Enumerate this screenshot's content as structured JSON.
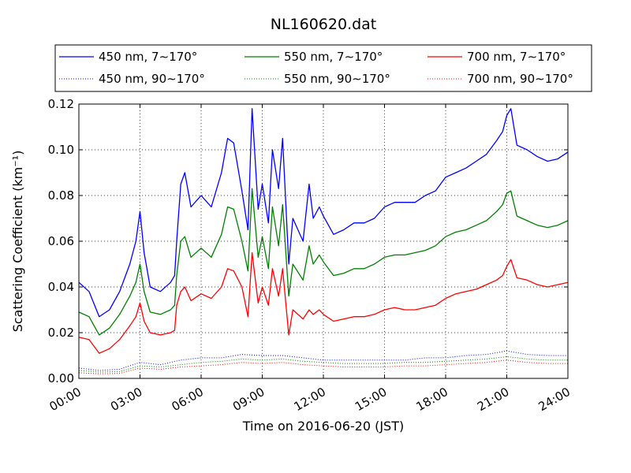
{
  "chart_data": {
    "type": "line",
    "title": "NL160620.dat",
    "xlabel": "Time on 2016-06-20 (JST)",
    "ylabel": "Scattering Coefficient (km⁻¹)",
    "x_unit": "hours",
    "xlim": [
      0,
      24
    ],
    "ylim": [
      0,
      0.12
    ],
    "xticks": [
      {
        "value": 0,
        "label": "00:00"
      },
      {
        "value": 3,
        "label": "03:00"
      },
      {
        "value": 6,
        "label": "06:00"
      },
      {
        "value": 9,
        "label": "09:00"
      },
      {
        "value": 12,
        "label": "12:00"
      },
      {
        "value": 15,
        "label": "15:00"
      },
      {
        "value": 18,
        "label": "18:00"
      },
      {
        "value": 21,
        "label": "21:00"
      },
      {
        "value": 24,
        "label": "24:00"
      }
    ],
    "yticks": [
      {
        "value": 0.0,
        "label": "0.00"
      },
      {
        "value": 0.02,
        "label": "0.02"
      },
      {
        "value": 0.04,
        "label": "0.04"
      },
      {
        "value": 0.06,
        "label": "0.06"
      },
      {
        "value": 0.08,
        "label": "0.08"
      },
      {
        "value": 0.1,
        "label": "0.10"
      },
      {
        "value": 0.12,
        "label": "0.12"
      }
    ],
    "grid": true,
    "legend_position": "top",
    "series": [
      {
        "name": "450 nm, 7∼170°",
        "color": "#0000ff",
        "dash": "solid",
        "x": [
          0.0,
          0.5,
          1.0,
          1.5,
          2.0,
          2.5,
          2.8,
          3.0,
          3.2,
          3.5,
          4.0,
          4.5,
          4.7,
          4.8,
          5.0,
          5.2,
          5.5,
          6.0,
          6.5,
          7.0,
          7.3,
          7.6,
          8.0,
          8.3,
          8.5,
          8.8,
          9.0,
          9.3,
          9.5,
          9.8,
          10.0,
          10.3,
          10.5,
          11.0,
          11.3,
          11.5,
          11.8,
          12.0,
          12.5,
          13.0,
          13.5,
          14.0,
          14.5,
          15.0,
          15.5,
          16.0,
          16.5,
          17.0,
          17.5,
          18.0,
          18.5,
          19.0,
          19.5,
          20.0,
          20.5,
          20.8,
          21.0,
          21.2,
          21.5,
          22.0,
          22.5,
          23.0,
          23.5,
          24.0
        ],
        "y": [
          0.042,
          0.038,
          0.027,
          0.03,
          0.038,
          0.05,
          0.06,
          0.073,
          0.055,
          0.04,
          0.038,
          0.042,
          0.045,
          0.06,
          0.085,
          0.09,
          0.075,
          0.08,
          0.075,
          0.09,
          0.105,
          0.103,
          0.082,
          0.065,
          0.118,
          0.074,
          0.085,
          0.068,
          0.1,
          0.083,
          0.105,
          0.05,
          0.07,
          0.06,
          0.085,
          0.07,
          0.075,
          0.071,
          0.063,
          0.065,
          0.068,
          0.068,
          0.07,
          0.075,
          0.077,
          0.077,
          0.077,
          0.08,
          0.082,
          0.088,
          0.09,
          0.092,
          0.095,
          0.098,
          0.104,
          0.108,
          0.115,
          0.118,
          0.102,
          0.1,
          0.097,
          0.095,
          0.096,
          0.099
        ]
      },
      {
        "name": "550 nm, 7∼170°",
        "color": "#008000",
        "dash": "solid",
        "x": [
          0.0,
          0.5,
          1.0,
          1.5,
          2.0,
          2.5,
          2.8,
          3.0,
          3.2,
          3.5,
          4.0,
          4.5,
          4.7,
          4.8,
          5.0,
          5.2,
          5.5,
          6.0,
          6.5,
          7.0,
          7.3,
          7.6,
          8.0,
          8.3,
          8.5,
          8.8,
          9.0,
          9.3,
          9.5,
          9.8,
          10.0,
          10.3,
          10.5,
          11.0,
          11.3,
          11.5,
          11.8,
          12.0,
          12.5,
          13.0,
          13.5,
          14.0,
          14.5,
          15.0,
          15.5,
          16.0,
          16.5,
          17.0,
          17.5,
          18.0,
          18.5,
          19.0,
          19.5,
          20.0,
          20.5,
          20.8,
          21.0,
          21.2,
          21.5,
          22.0,
          22.5,
          23.0,
          23.5,
          24.0
        ],
        "y": [
          0.029,
          0.027,
          0.019,
          0.022,
          0.028,
          0.036,
          0.042,
          0.05,
          0.038,
          0.029,
          0.028,
          0.03,
          0.032,
          0.045,
          0.06,
          0.062,
          0.053,
          0.057,
          0.053,
          0.063,
          0.075,
          0.074,
          0.06,
          0.047,
          0.083,
          0.053,
          0.062,
          0.048,
          0.075,
          0.058,
          0.076,
          0.036,
          0.05,
          0.043,
          0.058,
          0.05,
          0.054,
          0.051,
          0.045,
          0.046,
          0.048,
          0.048,
          0.05,
          0.053,
          0.054,
          0.054,
          0.055,
          0.056,
          0.058,
          0.062,
          0.064,
          0.065,
          0.067,
          0.069,
          0.073,
          0.076,
          0.081,
          0.082,
          0.071,
          0.069,
          0.067,
          0.066,
          0.067,
          0.069
        ]
      },
      {
        "name": "700 nm, 7∼170°",
        "color": "#ff0000",
        "dash": "solid",
        "x": [
          0.0,
          0.5,
          1.0,
          1.5,
          2.0,
          2.5,
          2.8,
          3.0,
          3.2,
          3.5,
          4.0,
          4.5,
          4.7,
          4.8,
          5.0,
          5.2,
          5.5,
          6.0,
          6.5,
          7.0,
          7.3,
          7.6,
          8.0,
          8.3,
          8.5,
          8.8,
          9.0,
          9.3,
          9.5,
          9.8,
          10.0,
          10.3,
          10.5,
          11.0,
          11.3,
          11.5,
          11.8,
          12.0,
          12.5,
          13.0,
          13.5,
          14.0,
          14.5,
          15.0,
          15.5,
          16.0,
          16.5,
          17.0,
          17.5,
          18.0,
          18.5,
          19.0,
          19.5,
          20.0,
          20.5,
          20.8,
          21.0,
          21.2,
          21.5,
          22.0,
          22.5,
          23.0,
          23.5,
          24.0
        ],
        "y": [
          0.018,
          0.017,
          0.011,
          0.013,
          0.017,
          0.023,
          0.027,
          0.033,
          0.025,
          0.02,
          0.019,
          0.02,
          0.021,
          0.032,
          0.038,
          0.04,
          0.034,
          0.037,
          0.035,
          0.04,
          0.048,
          0.047,
          0.04,
          0.027,
          0.055,
          0.033,
          0.04,
          0.032,
          0.048,
          0.036,
          0.048,
          0.019,
          0.03,
          0.026,
          0.03,
          0.028,
          0.03,
          0.028,
          0.025,
          0.026,
          0.027,
          0.027,
          0.028,
          0.03,
          0.031,
          0.03,
          0.03,
          0.031,
          0.032,
          0.035,
          0.037,
          0.038,
          0.039,
          0.041,
          0.043,
          0.045,
          0.049,
          0.052,
          0.044,
          0.043,
          0.041,
          0.04,
          0.041,
          0.042
        ]
      },
      {
        "name": "450 nm, 90∼170°",
        "color": "#0000ff",
        "dash": "dotted",
        "x": [
          0.0,
          1.0,
          2.0,
          3.0,
          4.0,
          5.0,
          6.0,
          7.0,
          8.0,
          9.0,
          10.0,
          11.0,
          12.0,
          13.0,
          14.0,
          15.0,
          16.0,
          17.0,
          18.0,
          19.0,
          20.0,
          21.0,
          22.0,
          23.0,
          24.0
        ],
        "y": [
          0.0045,
          0.0035,
          0.004,
          0.007,
          0.006,
          0.008,
          0.009,
          0.009,
          0.0105,
          0.01,
          0.01,
          0.009,
          0.008,
          0.008,
          0.008,
          0.008,
          0.008,
          0.009,
          0.009,
          0.01,
          0.0105,
          0.012,
          0.0105,
          0.01,
          0.01
        ]
      },
      {
        "name": "550 nm, 90∼170°",
        "color": "#008000",
        "dash": "dotted",
        "x": [
          0.0,
          1.0,
          2.0,
          3.0,
          4.0,
          5.0,
          6.0,
          7.0,
          8.0,
          9.0,
          10.0,
          11.0,
          12.0,
          13.0,
          14.0,
          15.0,
          16.0,
          17.0,
          18.0,
          19.0,
          20.0,
          21.0,
          22.0,
          23.0,
          24.0
        ],
        "y": [
          0.0035,
          0.0028,
          0.003,
          0.0055,
          0.005,
          0.006,
          0.007,
          0.0075,
          0.0085,
          0.008,
          0.0085,
          0.0075,
          0.007,
          0.0065,
          0.0065,
          0.0065,
          0.007,
          0.007,
          0.0075,
          0.008,
          0.0085,
          0.0095,
          0.0085,
          0.008,
          0.008
        ]
      },
      {
        "name": "700 nm, 90∼170°",
        "color": "#ff0000",
        "dash": "dotted",
        "x": [
          0.0,
          1.0,
          2.0,
          3.0,
          4.0,
          5.0,
          6.0,
          7.0,
          8.0,
          9.0,
          10.0,
          11.0,
          12.0,
          13.0,
          14.0,
          15.0,
          16.0,
          17.0,
          18.0,
          19.0,
          20.0,
          21.0,
          22.0,
          23.0,
          24.0
        ],
        "y": [
          0.0025,
          0.002,
          0.0022,
          0.0045,
          0.004,
          0.005,
          0.0055,
          0.006,
          0.007,
          0.0065,
          0.007,
          0.006,
          0.0055,
          0.005,
          0.005,
          0.005,
          0.0055,
          0.0055,
          0.006,
          0.0065,
          0.007,
          0.008,
          0.007,
          0.0065,
          0.0065
        ]
      }
    ]
  }
}
